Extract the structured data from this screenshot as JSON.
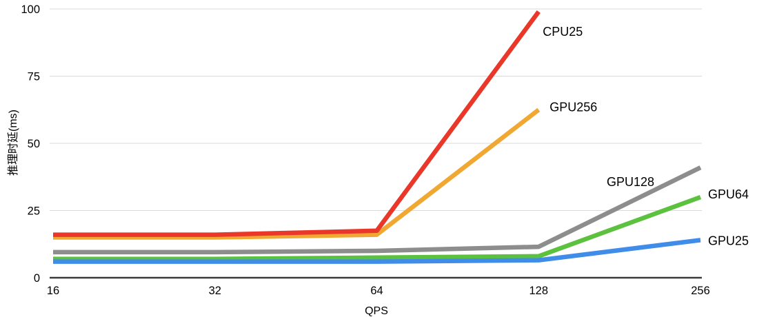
{
  "chart_data": {
    "type": "line",
    "title": "",
    "xlabel": "QPS",
    "ylabel": "推理时延(ms)",
    "categories": [
      "16",
      "32",
      "64",
      "128",
      "256"
    ],
    "x_scale": "log2-categories-evenly-spaced",
    "yticks": [
      0,
      25,
      50,
      75,
      100
    ],
    "ylim": [
      0,
      100
    ],
    "grid": "horizontal-only",
    "gridline_color": "#d9d9d9",
    "axis_line_color": "#3b3b3b",
    "legend_position": "inline-labels-at-line-ends",
    "series": [
      {
        "name": "GPU128",
        "color": "#8d8d8d",
        "values": [
          9.5,
          9.5,
          10,
          11.5,
          41
        ],
        "label_offset": [
          -136,
          27
        ]
      },
      {
        "name": "GPU64",
        "color": "#5cc13e",
        "values": [
          7,
          7,
          7.5,
          8,
          30
        ],
        "label_offset": [
          11,
          2
        ]
      },
      {
        "name": "GPU25",
        "color": "#3f8de9",
        "values": [
          6,
          6,
          6,
          6.5,
          14
        ],
        "label_offset": [
          11,
          7
        ]
      },
      {
        "name": "GPU256",
        "color": "#f0a832",
        "values": [
          15,
          15,
          16,
          62.5,
          null
        ],
        "label_offset": [
          16,
          2
        ]
      },
      {
        "name": "CPU25",
        "color": "#e9382a",
        "values": [
          16,
          16,
          17.5,
          99,
          null
        ],
        "label_offset": [
          6,
          35
        ]
      }
    ]
  }
}
